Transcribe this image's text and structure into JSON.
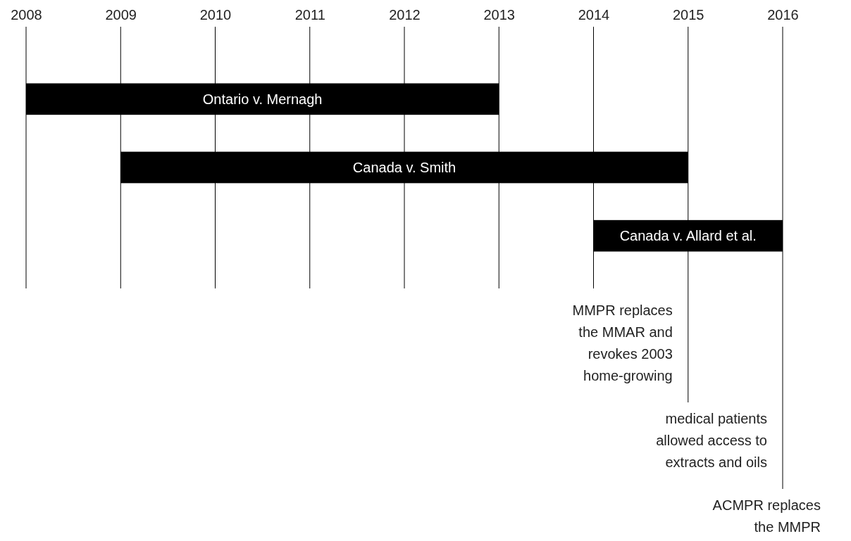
{
  "chart_data": {
    "type": "bar",
    "orientation": "horizontal",
    "categories": [
      "Ontario v. Mernagh",
      "Canada v. Smith",
      "Canada v. Allard et al."
    ],
    "base": [
      2008,
      2009,
      2014
    ],
    "values": [
      5,
      6,
      2
    ],
    "color": "#000000",
    "xlim": [
      2008,
      2016
    ],
    "xticks": [
      2008,
      2009,
      2010,
      2011,
      2012,
      2013,
      2014,
      2015,
      2016
    ],
    "grid": "x",
    "ref_lines": [
      {
        "axis": "x",
        "value": 2015,
        "label": "MMPR replaces\nthe MMAR and\nrevokes 2003\nhome-growing"
      },
      {
        "axis": "x",
        "value": 2016,
        "label": "medical patients\nallowed access to\nextracts and oils"
      }
    ],
    "annotations": [
      "ACMPR replaces\nthe MMPR"
    ]
  }
}
